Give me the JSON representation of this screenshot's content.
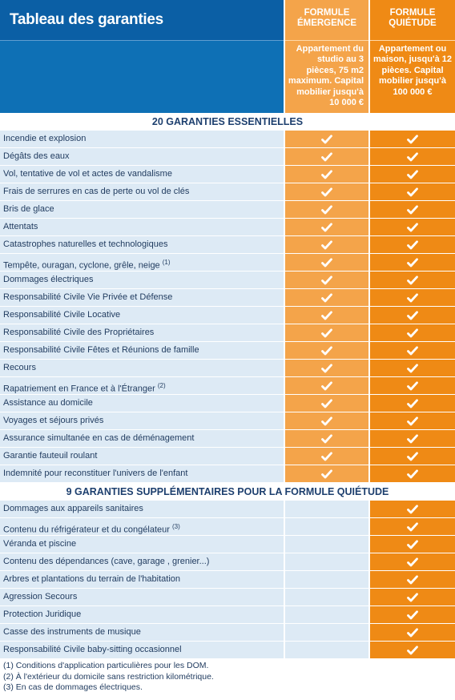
{
  "header": {
    "title": "Tableau des garanties",
    "formulas": [
      {
        "name": "FORMULE ÉMERGENCE",
        "description": "Appartement du studio au 3 pièces, 75 m2 maximum. Capital mobilier jusqu'à 10 000 €"
      },
      {
        "name": "FORMULE QUIÉTUDE",
        "description": "Appartement ou maison, jusqu'à 12 pièces. Capital mobilier jusqu'à 100 000 €"
      }
    ]
  },
  "colors": {
    "blue": "#0e70b5",
    "orange_light": "#f4a44a",
    "orange_dark": "#ef8a15",
    "row_bg": "#ddeaf5"
  },
  "icons": {
    "check": "check-icon"
  },
  "sections": [
    {
      "title": "20 GARANTIES ESSENTIELLES",
      "rows": [
        {
          "label": "Incendie et explosion",
          "note": "",
          "emergence": true,
          "quietude": true
        },
        {
          "label": "Dégâts des eaux",
          "note": "",
          "emergence": true,
          "quietude": true
        },
        {
          "label": "Vol, tentative de vol et actes de vandalisme",
          "note": "",
          "emergence": true,
          "quietude": true
        },
        {
          "label": "Frais de serrures en cas de perte ou vol de clés",
          "note": "",
          "emergence": true,
          "quietude": true
        },
        {
          "label": "Bris de glace",
          "note": "",
          "emergence": true,
          "quietude": true
        },
        {
          "label": "Attentats",
          "note": "",
          "emergence": true,
          "quietude": true
        },
        {
          "label": "Catastrophes naturelles et technologiques",
          "note": "",
          "emergence": true,
          "quietude": true
        },
        {
          "label": "Tempête, ouragan, cyclone, grêle, neige",
          "note": "(1)",
          "emergence": true,
          "quietude": true
        },
        {
          "label": "Dommages électriques",
          "note": "",
          "emergence": true,
          "quietude": true
        },
        {
          "label": "Responsabilité Civile Vie Privée et Défense",
          "note": "",
          "emergence": true,
          "quietude": true
        },
        {
          "label": "Responsabilité Civile Locative",
          "note": "",
          "emergence": true,
          "quietude": true
        },
        {
          "label": "Responsabilité Civile des Propriétaires",
          "note": "",
          "emergence": true,
          "quietude": true
        },
        {
          "label": "Responsabilité Civile Fêtes et Réunions de famille",
          "note": "",
          "emergence": true,
          "quietude": true
        },
        {
          "label": "Recours",
          "note": "",
          "emergence": true,
          "quietude": true
        },
        {
          "label": "Rapatriement en France et à l'Étranger",
          "note": "(2)",
          "emergence": true,
          "quietude": true
        },
        {
          "label": "Assistance au domicile",
          "note": "",
          "emergence": true,
          "quietude": true
        },
        {
          "label": "Voyages et séjours privés",
          "note": "",
          "emergence": true,
          "quietude": true
        },
        {
          "label": "Assurance simultanée en cas de déménagement",
          "note": "",
          "emergence": true,
          "quietude": true
        },
        {
          "label": "Garantie fauteuil roulant",
          "note": "",
          "emergence": true,
          "quietude": true
        },
        {
          "label": "Indemnité pour reconstituer l'univers de l'enfant",
          "note": "",
          "emergence": true,
          "quietude": true
        }
      ]
    },
    {
      "title": "9 GARANTIES SUPPLÉMENTAIRES POUR LA FORMULE QUIÉTUDE",
      "rows": [
        {
          "label": "Dommages aux appareils sanitaires",
          "note": "",
          "emergence": false,
          "quietude": true
        },
        {
          "label": "Contenu du réfrigérateur et du congélateur",
          "note": "(3)",
          "emergence": false,
          "quietude": true
        },
        {
          "label": "Véranda et piscine",
          "note": "",
          "emergence": false,
          "quietude": true
        },
        {
          "label": "Contenu des dépendances (cave, garage , grenier...)",
          "note": "",
          "emergence": false,
          "quietude": true
        },
        {
          "label": "Arbres et plantations du terrain de l'habitation",
          "note": "",
          "emergence": false,
          "quietude": true
        },
        {
          "label": "Agression Secours",
          "note": "",
          "emergence": false,
          "quietude": true
        },
        {
          "label": "Protection Juridique",
          "note": "",
          "emergence": false,
          "quietude": true
        },
        {
          "label": "Casse des instruments de musique",
          "note": "",
          "emergence": false,
          "quietude": true
        },
        {
          "label": "Responsabilité Civile baby-sitting occasionnel",
          "note": "",
          "emergence": false,
          "quietude": true
        }
      ]
    }
  ],
  "footnotes": [
    "(1) Conditions d'application particulières pour les DOM.",
    "(2) À l'extérieur du domicile sans restriction kilométrique.",
    "(3) En cas de dommages électriques."
  ]
}
